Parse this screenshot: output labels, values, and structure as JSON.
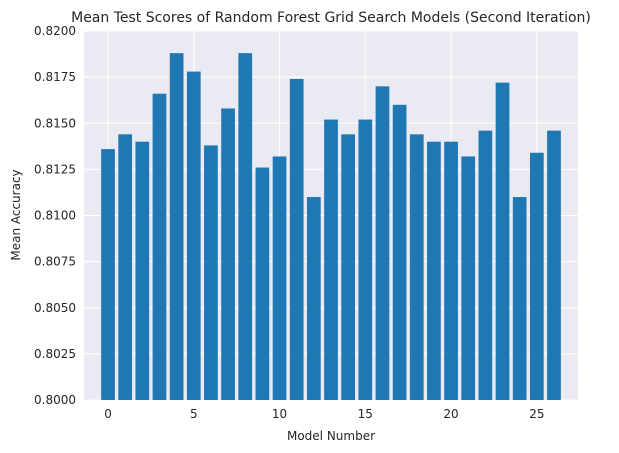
{
  "chart_data": {
    "type": "bar",
    "title": "Mean Test Scores of Random Forest Grid Search Models (Second Iteration)",
    "xlabel": "Model Number",
    "ylabel": "Mean Accuracy",
    "x": [
      0,
      1,
      2,
      3,
      4,
      5,
      6,
      7,
      8,
      9,
      10,
      11,
      12,
      13,
      14,
      15,
      16,
      17,
      18,
      19,
      20,
      21,
      22,
      23,
      24,
      25,
      26
    ],
    "values": [
      0.8136,
      0.8144,
      0.814,
      0.8166,
      0.8188,
      0.8178,
      0.8138,
      0.8158,
      0.8188,
      0.8126,
      0.8132,
      0.8174,
      0.811,
      0.8152,
      0.8144,
      0.8152,
      0.817,
      0.816,
      0.8144,
      0.814,
      0.814,
      0.8132,
      0.8146,
      0.8172,
      0.811,
      0.8134,
      0.8146
    ],
    "xlim": [
      -1.4,
      27.4
    ],
    "ylim": [
      0.8,
      0.82
    ],
    "xticks": [
      0,
      5,
      10,
      15,
      20,
      25
    ],
    "xtick_labels": [
      "0",
      "5",
      "10",
      "15",
      "20",
      "25"
    ],
    "yticks": [
      0.8,
      0.8025,
      0.805,
      0.8075,
      0.81,
      0.8125,
      0.815,
      0.8175,
      0.82
    ],
    "ytick_labels": [
      "0.8000",
      "0.8025",
      "0.8050",
      "0.8075",
      "0.8100",
      "0.8125",
      "0.8150",
      "0.8175",
      "0.8200"
    ],
    "grid": true,
    "colors": {
      "bar": "#1f77b4",
      "plot_bg": "#eaeaf2",
      "grid": "#ffffff",
      "text": "#262626"
    }
  }
}
